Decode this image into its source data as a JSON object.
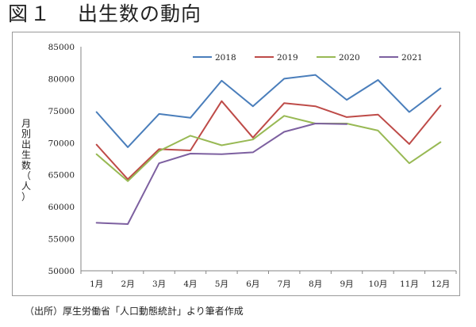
{
  "figure": {
    "title_prefix": "図",
    "title_number": "１",
    "title_text": "出生数の動向",
    "source": "（出所）厚生労働省「人口動態統計」より筆者作成"
  },
  "chart_data": {
    "type": "line",
    "title": "",
    "xlabel": "",
    "ylabel": "月別出生数（人）",
    "ylim": [
      50000,
      85000
    ],
    "yticks": [
      50000,
      55000,
      60000,
      65000,
      70000,
      75000,
      80000,
      85000
    ],
    "ytick_labels": [
      "50000",
      "55000",
      "60000",
      "65000",
      "70000",
      "75000",
      "80000",
      "85000"
    ],
    "categories": [
      "1月",
      "2月",
      "3月",
      "4月",
      "5月",
      "6月",
      "7月",
      "8月",
      "9月",
      "10月",
      "11月",
      "12月"
    ],
    "legend_position": "top",
    "series": [
      {
        "name": "2018",
        "color": "#4a7ebb",
        "values": [
          74800,
          69300,
          74500,
          73900,
          79700,
          75700,
          80000,
          80600,
          76700,
          79800,
          74800,
          78500
        ]
      },
      {
        "name": "2019",
        "color": "#be4b48",
        "values": [
          69700,
          64300,
          69000,
          68800,
          76500,
          70800,
          76200,
          75700,
          74000,
          74400,
          69800,
          75800
        ]
      },
      {
        "name": "2020",
        "color": "#98b954",
        "values": [
          68200,
          64000,
          68700,
          71100,
          69600,
          70500,
          74200,
          73000,
          73000,
          71900,
          66800,
          70100
        ]
      },
      {
        "name": "2021",
        "color": "#7d60a0",
        "values": [
          57500,
          57300,
          66800,
          68300,
          68200,
          68500,
          71700,
          73000,
          72900,
          null,
          null,
          null
        ]
      }
    ]
  }
}
